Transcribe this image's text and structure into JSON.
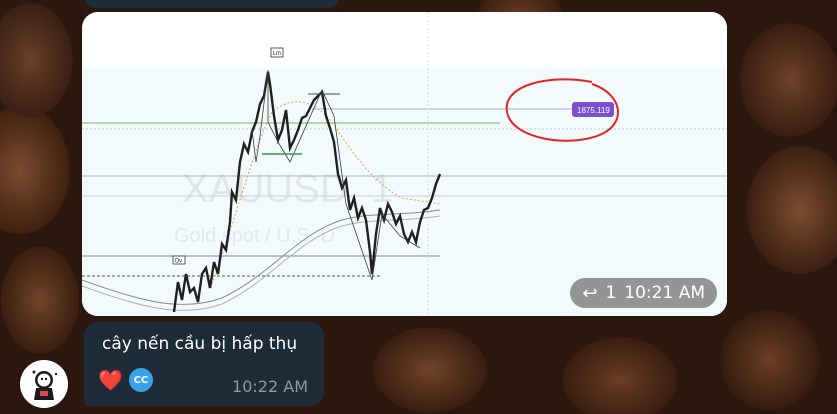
{
  "chart_image": {
    "watermark_symbol": "XAUUSD, 1",
    "watermark_desc": "Gold spot / U.S. D",
    "price_label": "1875.119",
    "chart_marker_top": "Lm",
    "chart_marker_low": "Ov",
    "annotation_color": "#e52222",
    "price_label_color": "#7b4fcf"
  },
  "media_meta": {
    "reply_icon": "reply-arrow-icon",
    "reply_count": "1",
    "time": "10:21 AM"
  },
  "message": {
    "text": "cây nến cầu bị hấp thụ",
    "reactions": {
      "emoji": "❤️",
      "reactor_initials": "CC"
    },
    "time": "10:22 AM"
  }
}
